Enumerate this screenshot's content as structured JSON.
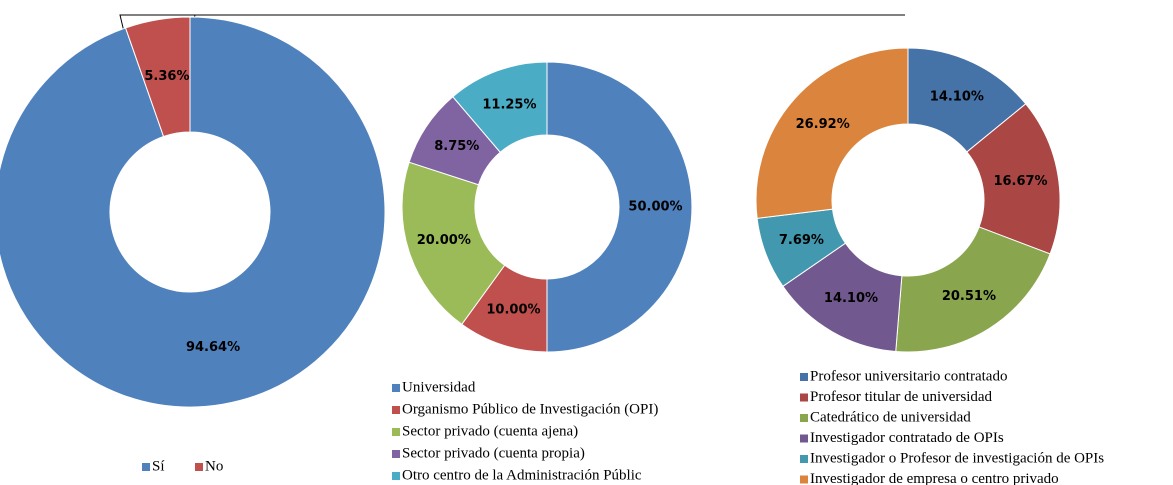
{
  "chart_data": [
    {
      "type": "donut",
      "categories": [
        "Sí",
        "No"
      ],
      "values": [
        94.64,
        5.36
      ],
      "value_labels": [
        "94.64%",
        "5.36%"
      ],
      "colors": [
        "#4f81bd",
        "#c0504d"
      ]
    },
    {
      "type": "donut",
      "categories": [
        "Universidad",
        "Organismo Público de Investigación (OPI)",
        "Sector privado (cuenta ajena)",
        "Sector privado (cuenta propia)",
        "Otro centro de la Administración Públic"
      ],
      "values": [
        50.0,
        10.0,
        20.0,
        8.75,
        11.25
      ],
      "value_labels": [
        "50.00%",
        "10.00%",
        "20.00%",
        "8.75%",
        "11.25%"
      ],
      "colors": [
        "#4f81bd",
        "#c0504d",
        "#9bbb59",
        "#8064a2",
        "#4bacc6"
      ]
    },
    {
      "type": "donut",
      "categories": [
        "Profesor universitario contratado",
        "Profesor titular de universidad",
        "Catedrático de universidad",
        "Investigador contratado de OPIs",
        "Investigador o Profesor de investigación de OPIs",
        "Investigador de empresa o centro privado"
      ],
      "values": [
        14.1,
        16.67,
        20.51,
        14.1,
        7.69,
        26.92
      ],
      "value_labels": [
        "14.10%",
        "16.67%",
        "20.51%",
        "14.10%",
        "7.69%",
        "26.92%"
      ],
      "colors": [
        "#4572a7",
        "#aa4643",
        "#89a54e",
        "#71588f",
        "#4198af",
        "#db843d"
      ]
    }
  ]
}
